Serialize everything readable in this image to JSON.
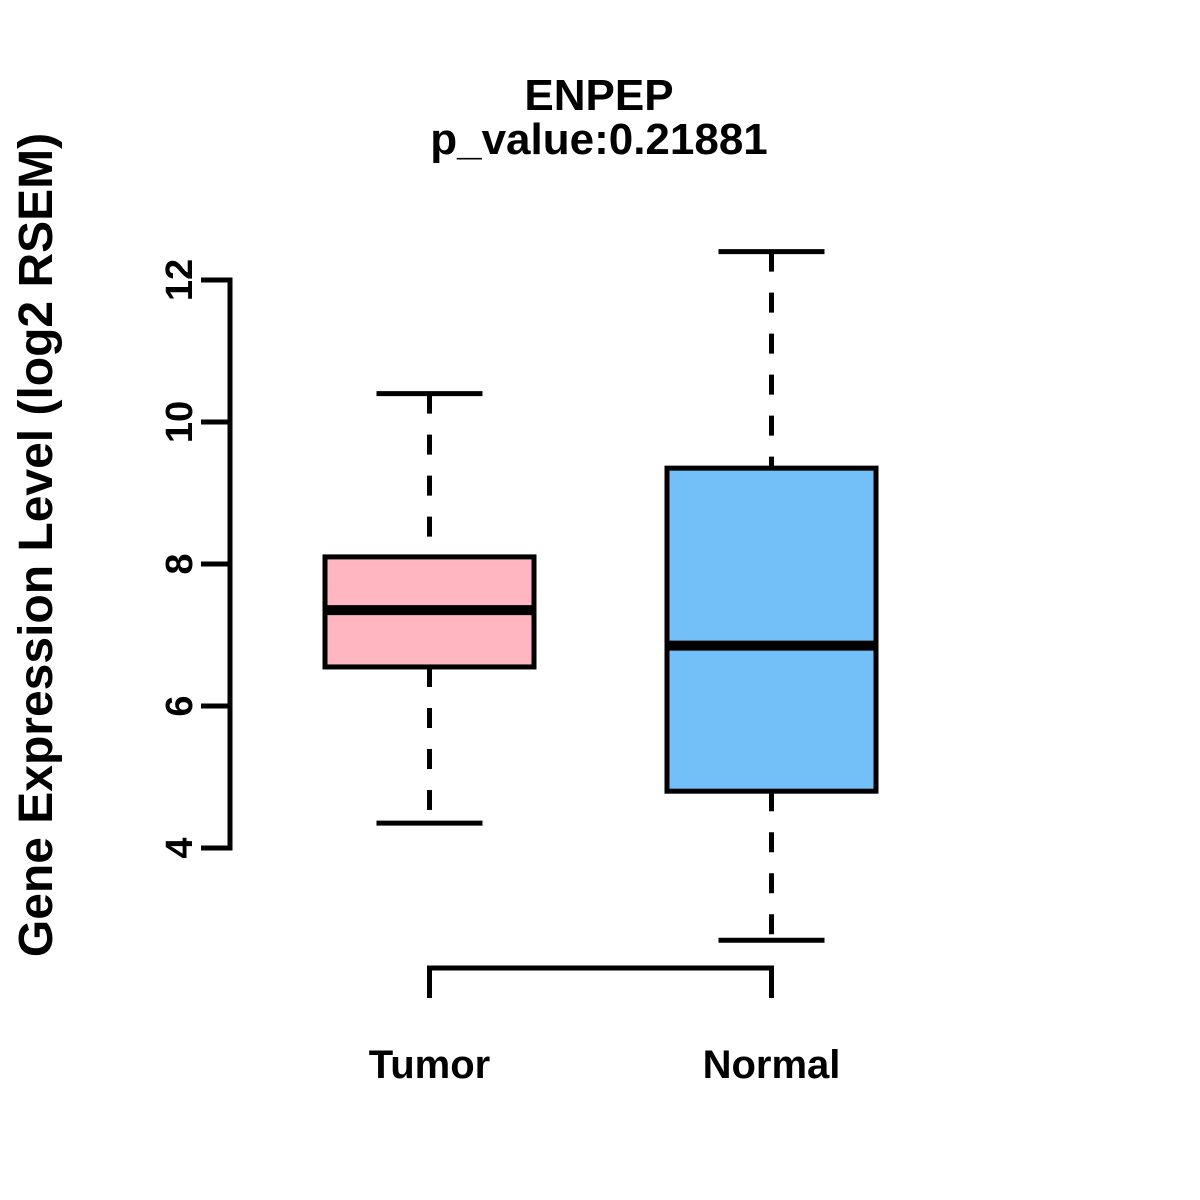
{
  "chart_data": {
    "type": "boxplot",
    "title": "ENPEP",
    "subtitle": "p_value:0.21881",
    "ylabel": "Gene Expression Level (log2 RSEM)",
    "xlabel": "",
    "yticks": [
      4,
      6,
      8,
      10,
      12
    ],
    "ylim": [
      2.5,
      12.6
    ],
    "grid": false,
    "legend": "none",
    "categories": [
      "Tumor",
      "Normal"
    ],
    "series": [
      {
        "name": "Tumor",
        "color": "#FFB6C1",
        "whisker_low": 4.35,
        "q1": 6.55,
        "median": 7.35,
        "q3": 8.1,
        "whisker_high": 10.4
      },
      {
        "name": "Normal",
        "color": "#73BFF8",
        "whisker_low": 2.7,
        "q1": 4.8,
        "median": 6.85,
        "q3": 9.35,
        "whisker_high": 12.4
      }
    ]
  },
  "colors": {
    "foreground": "#000000",
    "background": "#FFFFFF"
  }
}
